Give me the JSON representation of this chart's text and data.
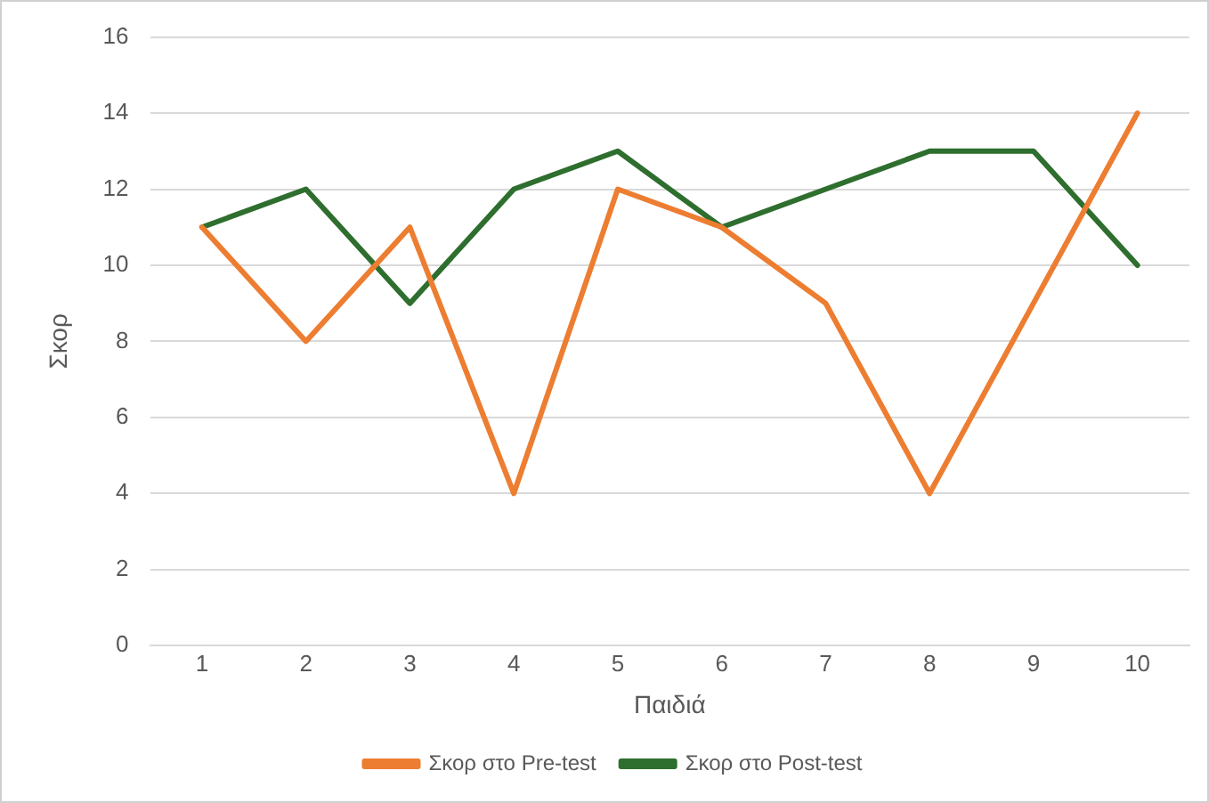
{
  "chart_data": {
    "type": "line",
    "xlabel": "Παιδιά",
    "ylabel": "Σκορ",
    "categories": [
      "1",
      "2",
      "3",
      "4",
      "5",
      "6",
      "7",
      "8",
      "9",
      "10"
    ],
    "series": [
      {
        "name": "Σκορ στο Pre-test",
        "color": "#ed7d31",
        "values": [
          11,
          8,
          11,
          4,
          12,
          11,
          9,
          4,
          9,
          14
        ]
      },
      {
        "name": "Σκορ στο Post-test",
        "color": "#2e6e2e",
        "values": [
          11,
          12,
          9,
          12,
          13,
          11,
          12,
          13,
          13,
          10
        ]
      }
    ],
    "ylim": [
      0,
      16
    ],
    "yticks": [
      0,
      2,
      4,
      6,
      8,
      10,
      12,
      14,
      16
    ],
    "grid": "y",
    "legend": "bottom",
    "marker": "none",
    "line_style": "solid"
  }
}
